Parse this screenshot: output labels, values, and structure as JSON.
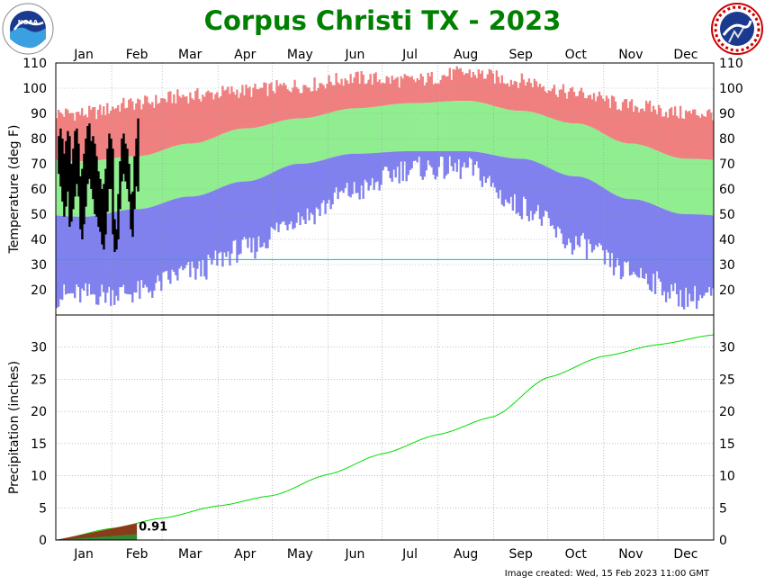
{
  "title": "Corpus Christi TX - 2023",
  "caption": "Image created: Wed, 15 Feb 2023 11:00 GMT",
  "logos": {
    "left": "noaa-logo",
    "right": "national-weather-service-logo"
  },
  "colors": {
    "title": "#008000",
    "record_range": "#f08080",
    "normal_range": "#90ee90",
    "record_low_range": "#8080ee",
    "observed": "#000000",
    "freezing_line": "#00c0c0",
    "precip_normal": "#00dd00",
    "precip_observed": "#338833"
  },
  "chart_data": [
    {
      "type": "bar",
      "name": "temperature",
      "ylabel": "Temperature (deg F)",
      "ylim": [
        10,
        110
      ],
      "y_ticks": [
        20,
        30,
        40,
        50,
        60,
        70,
        80,
        90,
        100,
        110
      ],
      "months": [
        "Jan",
        "Feb",
        "Mar",
        "Apr",
        "May",
        "Jun",
        "Jul",
        "Aug",
        "Sep",
        "Oct",
        "Nov",
        "Dec"
      ],
      "grid": true,
      "freezing_line": 32,
      "normal_high_monthly": [
        71,
        73,
        78,
        84,
        88,
        92,
        94,
        95,
        91,
        86,
        78,
        72
      ],
      "normal_low_monthly": [
        49,
        52,
        57,
        63,
        70,
        74,
        75,
        75,
        72,
        65,
        56,
        50
      ],
      "record_high_monthly": [
        90,
        94,
        97,
        99,
        101,
        104,
        103,
        106,
        103,
        98,
        93,
        90
      ],
      "record_low_monthly": [
        17,
        18,
        26,
        35,
        48,
        58,
        67,
        67,
        52,
        37,
        26,
        16
      ],
      "observed_days": [
        {
          "day": 1,
          "high": 81,
          "low": 66
        },
        {
          "day": 2,
          "high": 84,
          "low": 61
        },
        {
          "day": 3,
          "high": 80,
          "low": 55
        },
        {
          "day": 4,
          "high": 74,
          "low": 49
        },
        {
          "day": 5,
          "high": 79,
          "low": 53
        },
        {
          "day": 6,
          "high": 83,
          "low": 59
        },
        {
          "day": 7,
          "high": 81,
          "low": 45
        },
        {
          "day": 8,
          "high": 70,
          "low": 47
        },
        {
          "day": 9,
          "high": 76,
          "low": 52
        },
        {
          "day": 10,
          "high": 83,
          "low": 57
        },
        {
          "day": 11,
          "high": 84,
          "low": 62
        },
        {
          "day": 12,
          "high": 78,
          "low": 57
        },
        {
          "day": 13,
          "high": 65,
          "low": 44
        },
        {
          "day": 14,
          "high": 68,
          "low": 40
        },
        {
          "day": 15,
          "high": 74,
          "low": 46
        },
        {
          "day": 16,
          "high": 80,
          "low": 53
        },
        {
          "day": 17,
          "high": 85,
          "low": 62
        },
        {
          "day": 18,
          "high": 86,
          "low": 64
        },
        {
          "day": 19,
          "high": 79,
          "low": 60
        },
        {
          "day": 20,
          "high": 81,
          "low": 56
        },
        {
          "day": 21,
          "high": 78,
          "low": 50
        },
        {
          "day": 22,
          "high": 73,
          "low": 49
        },
        {
          "day": 23,
          "high": 67,
          "low": 45
        },
        {
          "day": 24,
          "high": 64,
          "low": 43
        },
        {
          "day": 25,
          "high": 60,
          "low": 38
        },
        {
          "day": 26,
          "high": 62,
          "low": 36
        },
        {
          "day": 27,
          "high": 68,
          "low": 42
        },
        {
          "day": 28,
          "high": 76,
          "low": 51
        },
        {
          "day": 29,
          "high": 82,
          "low": 60
        },
        {
          "day": 30,
          "high": 80,
          "low": 60
        },
        {
          "day": 31,
          "high": 76,
          "low": 42
        },
        {
          "day": 32,
          "high": 48,
          "low": 35
        },
        {
          "day": 33,
          "high": 44,
          "low": 36
        },
        {
          "day": 34,
          "high": 58,
          "low": 40
        },
        {
          "day": 35,
          "high": 71,
          "low": 52
        },
        {
          "day": 36,
          "high": 80,
          "low": 63
        },
        {
          "day": 37,
          "high": 82,
          "low": 66
        },
        {
          "day": 38,
          "high": 78,
          "low": 63
        },
        {
          "day": 39,
          "high": 76,
          "low": 60
        },
        {
          "day": 40,
          "high": 70,
          "low": 55
        },
        {
          "day": 41,
          "high": 58,
          "low": 44
        },
        {
          "day": 42,
          "high": 59,
          "low": 41
        },
        {
          "day": 43,
          "high": 73,
          "low": 52
        },
        {
          "day": 44,
          "high": 80,
          "low": 61
        },
        {
          "day": 45,
          "high": 88,
          "low": 59
        }
      ]
    },
    {
      "type": "line",
      "name": "precipitation",
      "ylabel": "Precipitation (inches)",
      "ylim": [
        0,
        35
      ],
      "y_ticks": [
        0,
        5,
        10,
        15,
        20,
        25,
        30
      ],
      "months": [
        "Jan",
        "Feb",
        "Mar",
        "Apr",
        "May",
        "Jun",
        "Jul",
        "Aug",
        "Sep",
        "Oct",
        "Nov",
        "Dec"
      ],
      "grid": true,
      "normal_cumulative": {
        "day": [
          0,
          31,
          59,
          90,
          120,
          151,
          181,
          212,
          243,
          273,
          304,
          334,
          365
        ],
        "value": [
          0,
          1.8,
          3.4,
          5.3,
          6.9,
          10.2,
          13.4,
          16.4,
          19.2,
          25.3,
          28.6,
          30.4,
          31.9
        ]
      },
      "observed_cumulative": {
        "day": [
          0,
          45
        ],
        "value": [
          0,
          0.91
        ]
      },
      "observed_label": "0.91"
    }
  ]
}
